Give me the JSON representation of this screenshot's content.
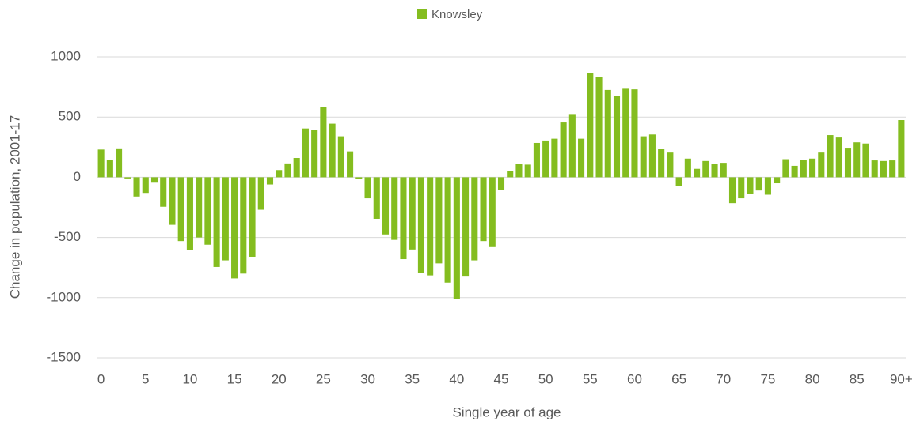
{
  "chart_data": {
    "type": "bar",
    "legend": "Knowsley",
    "xlabel": "Single year of age",
    "ylabel": "Change in population, 2001-17",
    "color": "#84bd1f",
    "categories": [
      "0",
      null,
      null,
      null,
      null,
      "5",
      null,
      null,
      null,
      null,
      "10",
      null,
      null,
      null,
      null,
      "15",
      null,
      null,
      null,
      null,
      "20",
      null,
      null,
      null,
      null,
      "25",
      null,
      null,
      null,
      null,
      "30",
      null,
      null,
      null,
      null,
      "35",
      null,
      null,
      null,
      null,
      "40",
      null,
      null,
      null,
      null,
      "45",
      null,
      null,
      null,
      null,
      "50",
      null,
      null,
      null,
      null,
      "55",
      null,
      null,
      null,
      null,
      "60",
      null,
      null,
      null,
      null,
      "65",
      null,
      null,
      null,
      null,
      "70",
      null,
      null,
      null,
      null,
      "75",
      null,
      null,
      null,
      null,
      "80",
      null,
      null,
      null,
      null,
      "85",
      null,
      null,
      null,
      null,
      "90+"
    ],
    "values": [
      230,
      145,
      240,
      -10,
      -160,
      -130,
      -45,
      -245,
      -395,
      -530,
      -605,
      -500,
      -560,
      -745,
      -690,
      -840,
      -800,
      -660,
      -270,
      -60,
      60,
      115,
      160,
      405,
      390,
      580,
      445,
      340,
      215,
      -15,
      -175,
      -345,
      -475,
      -520,
      -680,
      -600,
      -795,
      -815,
      -715,
      -875,
      -1010,
      -825,
      -690,
      -530,
      -580,
      -105,
      55,
      110,
      105,
      285,
      305,
      320,
      455,
      525,
      320,
      865,
      830,
      725,
      675,
      735,
      730,
      340,
      355,
      235,
      205,
      -70,
      155,
      70,
      135,
      110,
      120,
      -215,
      -175,
      -140,
      -110,
      -145,
      -50,
      150,
      95,
      145,
      155,
      205,
      350,
      330,
      245,
      290,
      280,
      140,
      135,
      140,
      475
    ],
    "ylim": [
      -1500,
      1000
    ],
    "yticks": [
      -1500,
      -1000,
      -500,
      0,
      500,
      1000
    ],
    "grid": true
  }
}
